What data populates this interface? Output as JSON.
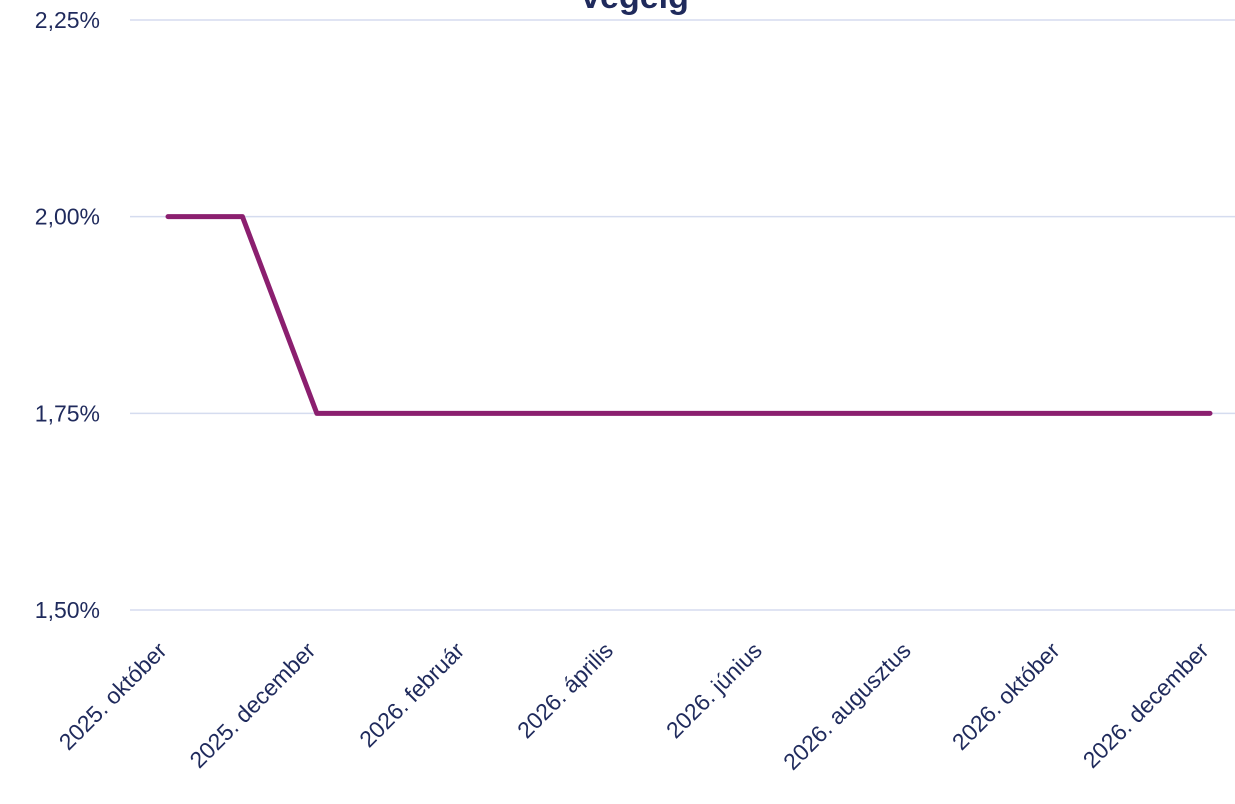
{
  "chart_data": {
    "type": "line",
    "title": "végéig",
    "categories": [
      "2025. október",
      null,
      "2025. december",
      null,
      "2026. február",
      null,
      "2026. április",
      null,
      "2026. június",
      null,
      "2026. augusztus",
      null,
      "2026. október",
      null,
      "2026. december"
    ],
    "values": [
      2.0,
      2.0,
      1.75,
      1.75,
      1.75,
      1.75,
      1.75,
      1.75,
      1.75,
      1.75,
      1.75,
      1.75,
      1.75,
      1.75,
      1.75
    ],
    "color": "#8b1f6f",
    "ylim": [
      1.5,
      2.25
    ],
    "yticks": [
      {
        "value": 1.5,
        "label": "1,50%"
      },
      {
        "value": 1.75,
        "label": "1,75%"
      },
      {
        "value": 2.0,
        "label": "2,00%"
      },
      {
        "value": 2.25,
        "label": "2,25%"
      }
    ],
    "grid": true
  }
}
